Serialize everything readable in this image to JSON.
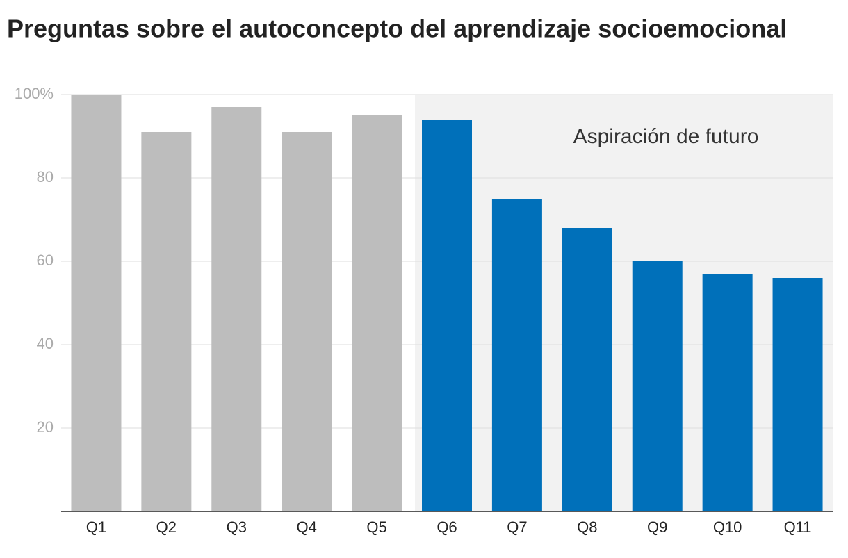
{
  "chart_data": {
    "type": "bar",
    "title": "Preguntas sobre el autoconcepto del aprendizaje socioemocional",
    "annotation": "Aspiración de futuro",
    "categories": [
      "Q1",
      "Q2",
      "Q3",
      "Q4",
      "Q5",
      "Q6",
      "Q7",
      "Q8",
      "Q9",
      "Q10",
      "Q11"
    ],
    "values": [
      100,
      91,
      97,
      91,
      95,
      94,
      75,
      68,
      60,
      57,
      56
    ],
    "colors": [
      "#bdbdbd",
      "#bdbdbd",
      "#bdbdbd",
      "#bdbdbd",
      "#bdbdbd",
      "#0070ba",
      "#0070ba",
      "#0070ba",
      "#0070ba",
      "#0070ba",
      "#0070ba"
    ],
    "ylim": [
      0,
      100
    ],
    "yticks": [
      20,
      40,
      60,
      80,
      {
        "value": 100,
        "label": "100%"
      }
    ],
    "grid": true
  }
}
